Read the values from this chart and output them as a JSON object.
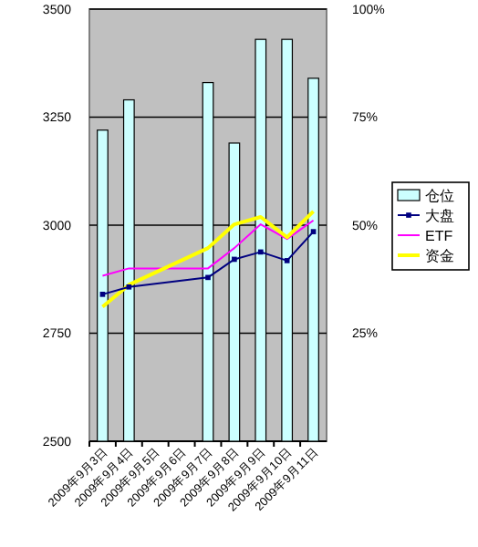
{
  "chart_data": {
    "type": "bar",
    "categories": [
      "2009年9月3日",
      "2009年9月4日",
      "2009年9月5日",
      "2009年9月6日",
      "2009年9月7日",
      "2009年9月8日",
      "2009年9月9日",
      "2009年9月10日",
      "2009年9月11日"
    ],
    "series": [
      {
        "name": "仓位",
        "axis": "y2",
        "color": "#ccffff",
        "values": [
          72,
          79,
          null,
          null,
          83,
          69,
          93,
          93,
          84
        ]
      },
      {
        "name": "大盘",
        "type": "line",
        "marker": "square",
        "color": "#000080",
        "values": [
          2840,
          2857,
          null,
          null,
          2879,
          2921,
          2938,
          2918,
          2985
        ]
      },
      {
        "name": "ETF",
        "type": "line",
        "color": "#ff00ff",
        "values": [
          2883,
          2900,
          null,
          null,
          2900,
          2947,
          3002,
          2968,
          3011
        ]
      },
      {
        "name": "资金",
        "type": "line",
        "color": "#ffff00",
        "values": [
          2811,
          2862,
          null,
          null,
          2947,
          3002,
          3019,
          2972,
          3032
        ]
      }
    ],
    "ylim": [
      2500,
      3500
    ],
    "yticks": [
      2500,
      2750,
      3000,
      3250,
      3500
    ],
    "y2lim": [
      0,
      100
    ],
    "y2ticks": [
      {
        "value": 25,
        "label": "25%"
      },
      {
        "value": 50,
        "label": "50%"
      },
      {
        "value": 75,
        "label": "75%"
      },
      {
        "value": 100,
        "label": "100%"
      }
    ],
    "grid": "y",
    "legend": "right"
  }
}
